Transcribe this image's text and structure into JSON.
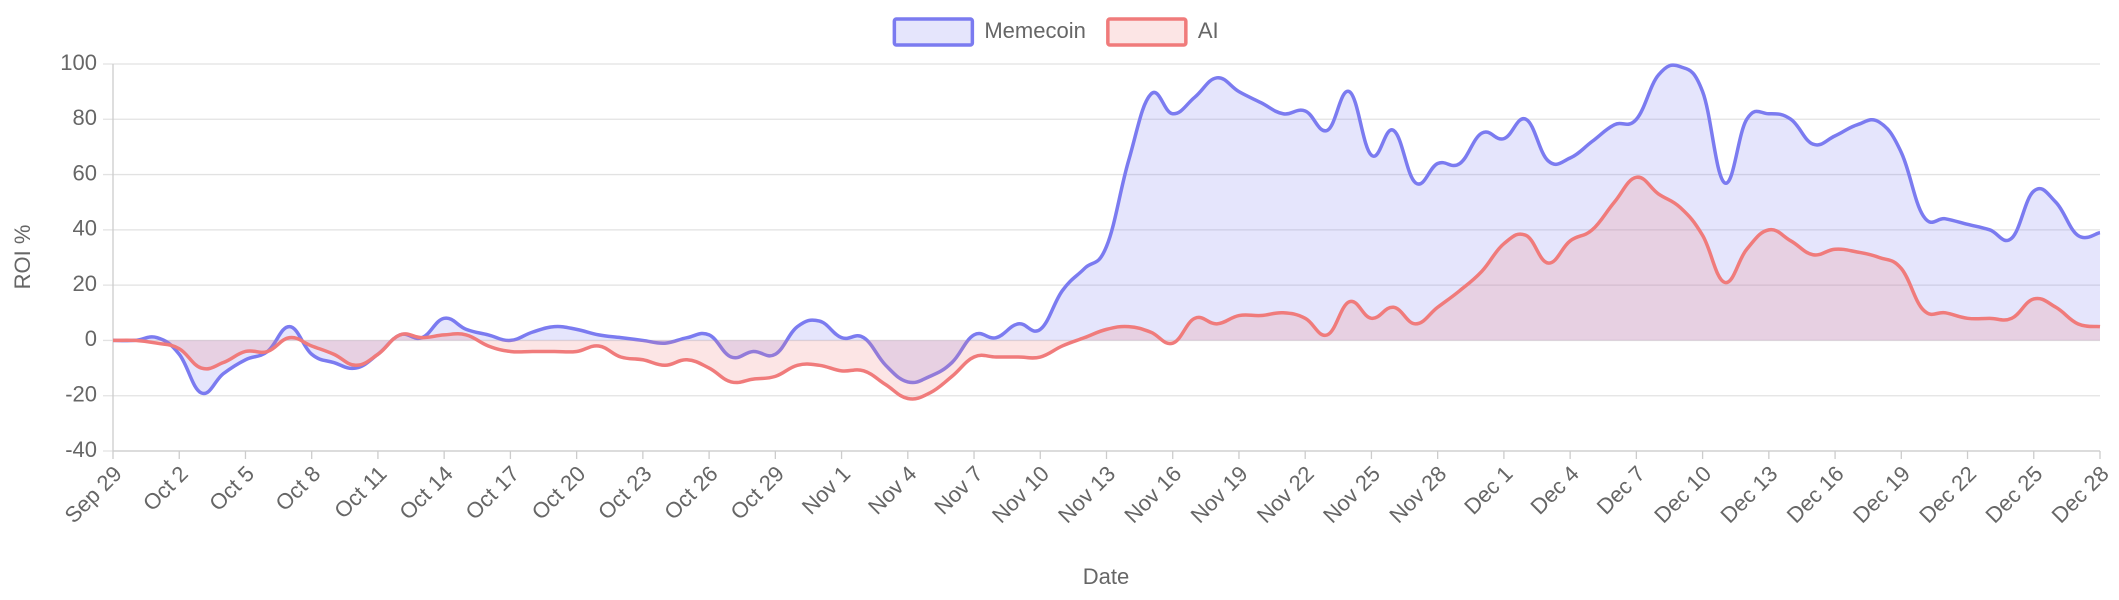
{
  "chart_data": {
    "type": "line",
    "x_label": "Date",
    "y_label": "ROI %",
    "categories": [
      "Sep 29",
      null,
      null,
      "Oct 2",
      null,
      null,
      "Oct 5",
      null,
      null,
      "Oct 8",
      null,
      null,
      "Oct 11",
      null,
      null,
      "Oct 14",
      null,
      null,
      "Oct 17",
      null,
      null,
      "Oct 20",
      null,
      null,
      "Oct 23",
      null,
      null,
      "Oct 26",
      null,
      null,
      "Oct 29",
      null,
      null,
      "Nov 1",
      null,
      null,
      "Nov 4",
      null,
      null,
      "Nov 7",
      null,
      null,
      "Nov 10",
      null,
      null,
      "Nov 13",
      null,
      null,
      "Nov 16",
      null,
      null,
      "Nov 19",
      null,
      null,
      "Nov 22",
      null,
      null,
      "Nov 25",
      null,
      null,
      "Nov 28",
      null,
      null,
      "Dec 1",
      null,
      null,
      "Dec 4",
      null,
      null,
      "Dec 7",
      null,
      null,
      "Dec 10",
      null,
      null,
      "Dec 13",
      null,
      null,
      "Dec 16",
      null,
      null,
      "Dec 19",
      null,
      null,
      "Dec 22",
      null,
      null,
      "Dec 25",
      null,
      null,
      "Dec 28"
    ],
    "series": [
      {
        "name": "Memecoin",
        "color": "#7b7bf0",
        "fill": "rgba(123,123,240,0.2)",
        "values": [
          0,
          0,
          1,
          -5,
          -19,
          -12,
          -7,
          -4,
          5,
          -5,
          -8,
          -10,
          -5,
          2,
          1,
          8,
          4,
          2,
          0,
          3,
          5,
          4,
          2,
          1,
          0,
          -1,
          1,
          2,
          -6,
          -4,
          -5,
          5,
          7,
          1,
          1,
          -9,
          -15,
          -13,
          -8,
          2,
          1,
          6,
          4,
          18,
          26,
          34,
          65,
          89,
          82,
          88,
          95,
          90,
          86,
          82,
          83,
          76,
          90,
          67,
          76,
          57,
          64,
          64,
          75,
          73,
          80,
          65,
          66,
          72,
          78,
          80,
          96,
          99,
          90,
          57,
          80,
          82,
          80,
          71,
          74,
          78,
          79,
          68,
          45,
          44,
          42,
          40,
          37,
          54,
          50,
          38,
          39
        ]
      },
      {
        "name": "AI",
        "color": "#f07b7b",
        "fill": "rgba(240,123,123,0.2)",
        "values": [
          0,
          0,
          -1,
          -3,
          -10,
          -8,
          -4,
          -4,
          1,
          -2,
          -5,
          -9,
          -5,
          2,
          1,
          2,
          2,
          -2,
          -4,
          -4,
          -4,
          -4,
          -2,
          -6,
          -7,
          -9,
          -7,
          -10,
          -15,
          -14,
          -13,
          -9,
          -9,
          -11,
          -11,
          -16,
          -21,
          -19,
          -13,
          -6,
          -6,
          -6,
          -6,
          -2,
          1,
          4,
          5,
          3,
          -1,
          8,
          6,
          9,
          9,
          10,
          8,
          2,
          14,
          8,
          12,
          6,
          12,
          18,
          25,
          35,
          38,
          28,
          36,
          40,
          50,
          59,
          53,
          48,
          38,
          21,
          33,
          40,
          36,
          31,
          33,
          32,
          30,
          26,
          11,
          10,
          8,
          8,
          8,
          15,
          12,
          6,
          5
        ]
      }
    ],
    "ylim": [
      -40,
      100
    ],
    "yticks": [
      -40,
      -20,
      0,
      20,
      40,
      60,
      80,
      100
    ],
    "grid": true,
    "legend": "top"
  }
}
